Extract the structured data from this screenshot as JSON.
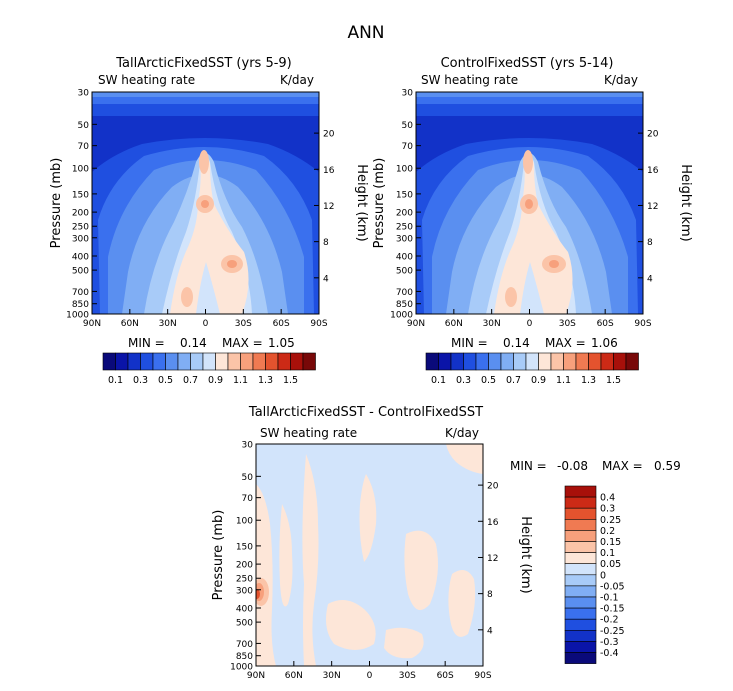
{
  "figure": {
    "title": "ANN"
  },
  "colors": {
    "abs_scale": [
      "#0a0a7a",
      "#0a14a8",
      "#1232c8",
      "#1f4fe0",
      "#3a70ee",
      "#5a8ff0",
      "#80aef4",
      "#a8cbf8",
      "#d2e4fb",
      "#fde6d8",
      "#fbc4a8",
      "#f7a07c",
      "#f07a52",
      "#e4532e",
      "#cc2a16",
      "#a8100a",
      "#780808"
    ],
    "diff_scale": [
      "#0a0a7a",
      "#0a14a8",
      "#1232c8",
      "#1f4fe0",
      "#3a70ee",
      "#5a8ff0",
      "#80aef4",
      "#a8cbf8",
      "#d2e4fb",
      "#fde6d8",
      "#fbc4a8",
      "#f7a07c",
      "#f07a52",
      "#e4532e",
      "#cc2a16",
      "#a8100a"
    ]
  },
  "chart_data": [
    {
      "type": "heatmap",
      "title": "TallArcticFixedSST (yrs 5-9)",
      "variable": "SW heating rate",
      "units": "K/day",
      "ylabel": "Pressure (mb)",
      "ylabel_right": "Height (km)",
      "x_ticks": [
        "90N",
        "60N",
        "30N",
        "0",
        "30S",
        "60S",
        "90S"
      ],
      "y_ticks": [
        "30",
        "50",
        "70",
        "100",
        "150",
        "200",
        "250",
        "300",
        "400",
        "500",
        "700",
        "850",
        "1000"
      ],
      "height_ticks": [
        "20",
        "16",
        "12",
        "8",
        "4"
      ],
      "min_label": "MIN =",
      "min": "0.14",
      "max_label": "MAX =",
      "max": "1.05",
      "colorbar_labels": [
        "0.1",
        "0.3",
        "0.5",
        "0.7",
        "0.9",
        "1.1",
        "1.3",
        "1.5"
      ]
    },
    {
      "type": "heatmap",
      "title": "ControlFixedSST (yrs 5-14)",
      "variable": "SW heating rate",
      "units": "K/day",
      "ylabel": "Pressure (mb)",
      "ylabel_right": "Height (km)",
      "x_ticks": [
        "90N",
        "60N",
        "30N",
        "0",
        "30S",
        "60S",
        "90S"
      ],
      "y_ticks": [
        "30",
        "50",
        "70",
        "100",
        "150",
        "200",
        "250",
        "300",
        "400",
        "500",
        "700",
        "850",
        "1000"
      ],
      "height_ticks": [
        "20",
        "16",
        "12",
        "8",
        "4"
      ],
      "min_label": "MIN =",
      "min": "0.14",
      "max_label": "MAX =",
      "max": "1.06",
      "colorbar_labels": [
        "0.1",
        "0.3",
        "0.5",
        "0.7",
        "0.9",
        "1.1",
        "1.3",
        "1.5"
      ]
    },
    {
      "type": "heatmap",
      "title": "TallArcticFixedSST - ControlFixedSST",
      "variable": "SW heating rate",
      "units": "K/day",
      "ylabel": "Pressure (mb)",
      "ylabel_right": "Height (km)",
      "x_ticks": [
        "90N",
        "60N",
        "30N",
        "0",
        "30S",
        "60S",
        "90S"
      ],
      "y_ticks": [
        "30",
        "50",
        "70",
        "100",
        "150",
        "200",
        "250",
        "300",
        "400",
        "500",
        "700",
        "850",
        "1000"
      ],
      "height_ticks": [
        "20",
        "16",
        "12",
        "8",
        "4"
      ],
      "min_label": "MIN =",
      "min": "-0.08",
      "max_label": "MAX =",
      "max": "0.59",
      "colorbar_labels": [
        "0.4",
        "0.3",
        "0.25",
        "0.2",
        "0.15",
        "0.1",
        "0.05",
        "0",
        "-0.05",
        "-0.1",
        "-0.15",
        "-0.2",
        "-0.25",
        "-0.3",
        "-0.4"
      ]
    }
  ]
}
